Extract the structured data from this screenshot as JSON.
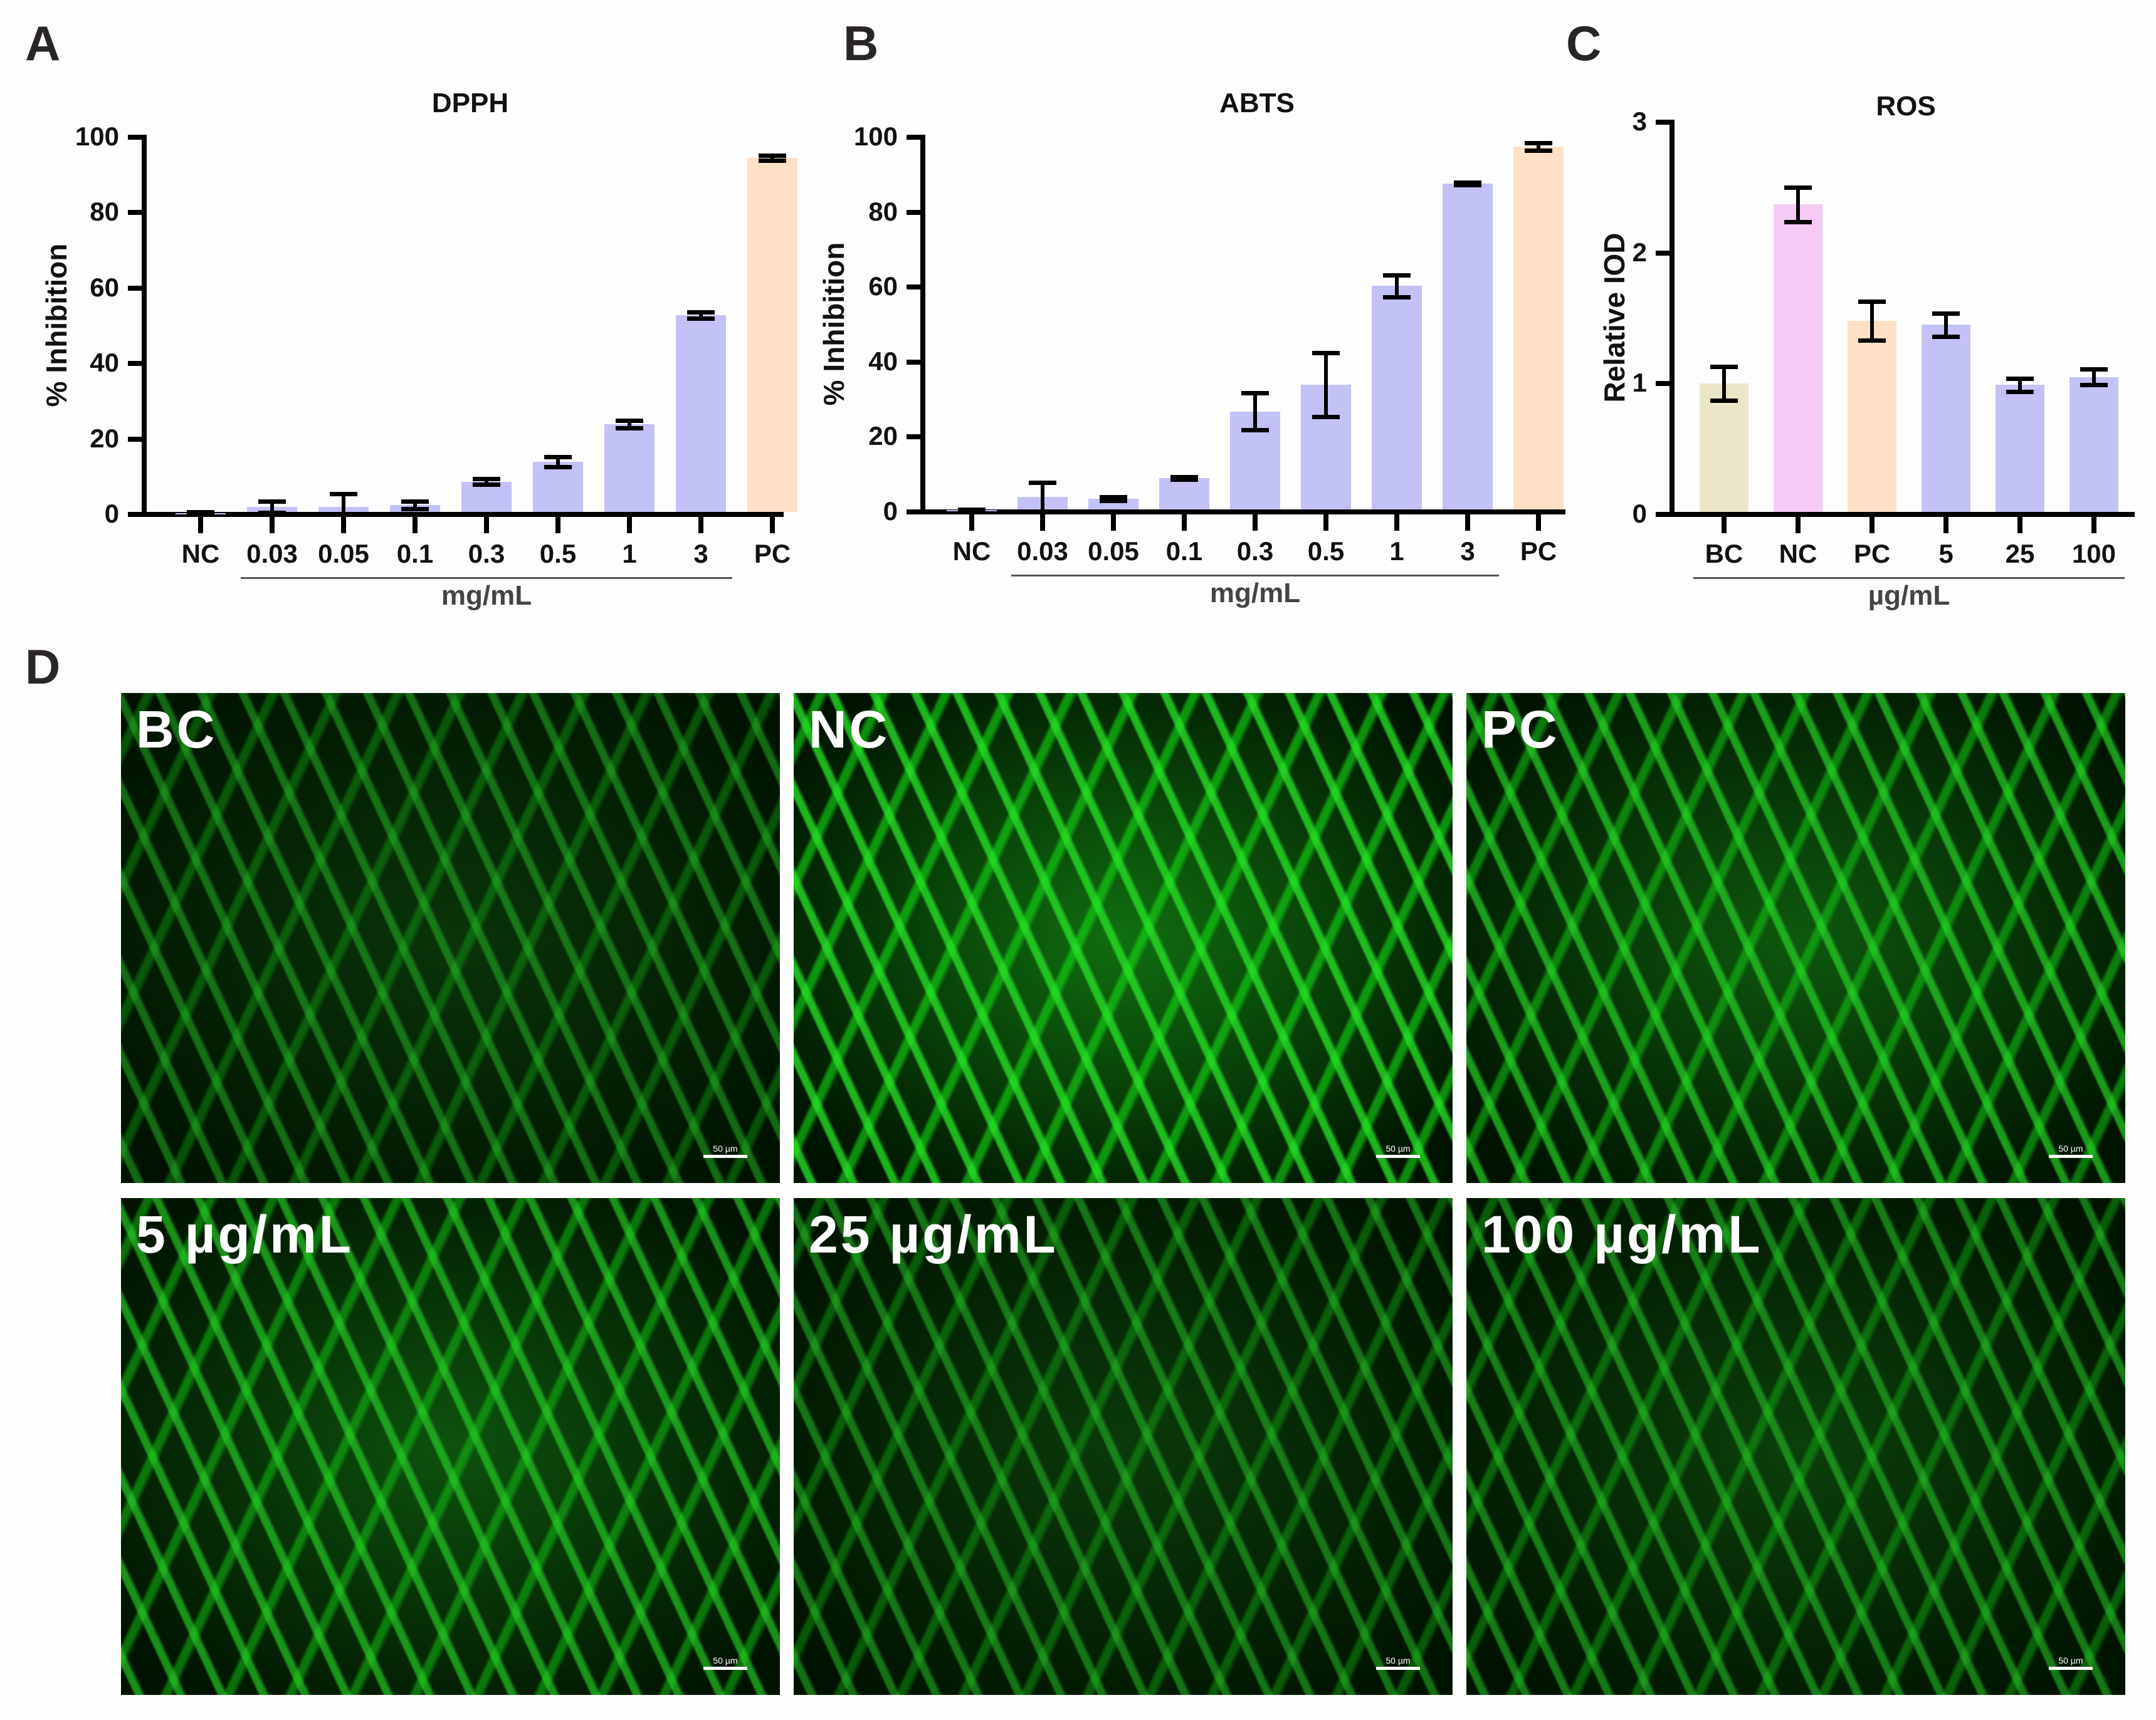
{
  "panels": {
    "A": "A",
    "B": "B",
    "C": "C",
    "D": "D"
  },
  "chart_data": [
    {
      "id": "A",
      "type": "bar",
      "title": "DPPH",
      "xlabel": "mg/mL",
      "ylabel": "% Inhibition",
      "ylim": [
        0,
        100
      ],
      "yticks": [
        0,
        20,
        40,
        60,
        80,
        100
      ],
      "categories": [
        "NC",
        "0.03",
        "0.05",
        "0.1",
        "0.3",
        "0.5",
        "1",
        "3",
        "PC"
      ],
      "values": [
        0.3,
        2,
        2,
        2.5,
        8.7,
        14,
        24,
        52.8,
        94.5
      ],
      "errors": [
        0.3,
        1.5,
        3.5,
        1,
        0.8,
        1.3,
        1,
        0.8,
        0.6
      ],
      "colors": [
        "#c2c2f7",
        "#c2c2f7",
        "#c2c2f7",
        "#c2c2f7",
        "#c2c2f7",
        "#c2c2f7",
        "#c2c2f7",
        "#c2c2f7",
        "#fde0c5"
      ],
      "group_label": "mg/mL",
      "group_range": [
        1,
        7
      ],
      "grid": false
    },
    {
      "id": "B",
      "type": "bar",
      "title": "ABTS",
      "xlabel": "mg/mL",
      "ylabel": "% Inhibition",
      "ylim": [
        0,
        100
      ],
      "yticks": [
        0,
        20,
        40,
        60,
        80,
        100
      ],
      "categories": [
        "NC",
        "0.03",
        "0.05",
        "0.1",
        "0.3",
        "0.5",
        "1",
        "3",
        "PC"
      ],
      "values": [
        0.5,
        4,
        3.5,
        9,
        26.8,
        34,
        60.3,
        87.6,
        97.5
      ],
      "errors": [
        0.2,
        3.8,
        0.5,
        0.3,
        4.9,
        8.5,
        2.9,
        0.3,
        1
      ],
      "colors": [
        "#c2c2f7",
        "#c2c2f7",
        "#c2c2f7",
        "#c2c2f7",
        "#c2c2f7",
        "#c2c2f7",
        "#c2c2f7",
        "#c2c2f7",
        "#fde0c5"
      ],
      "group_label": "mg/mL",
      "group_range": [
        1,
        7
      ],
      "grid": false
    },
    {
      "id": "C",
      "type": "bar",
      "title": "ROS",
      "xlabel": "µg/mL",
      "ylabel": "Relative IOD",
      "ylim": [
        0,
        3
      ],
      "yticks": [
        0,
        1,
        2,
        3
      ],
      "categories": [
        "BC",
        "NC",
        "PC",
        "5",
        "25",
        "100"
      ],
      "values": [
        1.0,
        2.37,
        1.48,
        1.45,
        0.99,
        1.05
      ],
      "errors": [
        0.13,
        0.13,
        0.15,
        0.09,
        0.05,
        0.06
      ],
      "colors": [
        "#ebe6c8",
        "#f5cbf5",
        "#fde0c5",
        "#c2c2f7",
        "#c2c2f7",
        "#c2c2f7"
      ],
      "group_label": "µg/mL",
      "group_range": [
        0,
        5
      ],
      "grid": false
    }
  ],
  "photos": [
    {
      "label": "BC",
      "scale": "50 µm",
      "intensity": 0.55
    },
    {
      "label": "NC",
      "scale": "50 µm",
      "intensity": 1.0
    },
    {
      "label": "PC",
      "scale": "50 µm",
      "intensity": 0.85
    },
    {
      "label": "5 µg/mL",
      "scale": "50 µm",
      "intensity": 0.8
    },
    {
      "label": "25 µg/mL",
      "scale": "50 µm",
      "intensity": 0.6
    },
    {
      "label": "100 µg/mL",
      "scale": "50 µm",
      "intensity": 0.65
    }
  ]
}
